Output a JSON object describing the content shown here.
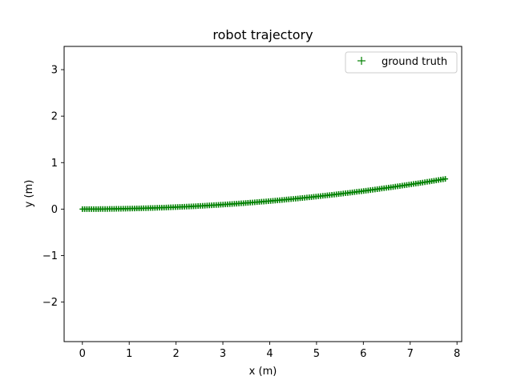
{
  "chart_data": {
    "type": "scatter",
    "title": "robot trajectory",
    "xlabel": "x (m)",
    "ylabel": "y (m)",
    "xlim": [
      -0.39,
      8.1
    ],
    "ylim": [
      -2.85,
      3.5
    ],
    "xticks": [
      "0",
      "1",
      "2",
      "3",
      "4",
      "5",
      "6",
      "7",
      "8"
    ],
    "yticks": [
      "−2",
      "−1",
      "0",
      "1",
      "2",
      "3"
    ],
    "grid": false,
    "legend": "top-right",
    "series": [
      {
        "name": "ground truth",
        "marker": "+",
        "color": "#008000",
        "curve": {
          "x_start": 0.0,
          "x_end": 7.75,
          "y_end": 0.65,
          "exponent": 2
        }
      }
    ]
  }
}
